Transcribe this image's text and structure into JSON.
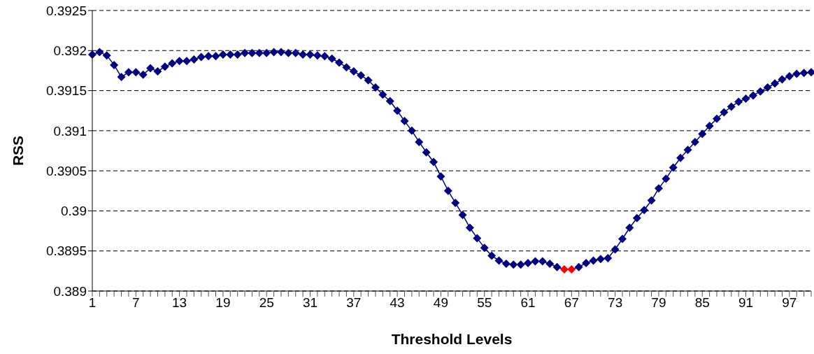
{
  "chart_data": {
    "type": "line",
    "xlabel": "Threshold Levels",
    "ylabel": "RSS",
    "categories": [
      "1",
      null,
      null,
      null,
      null,
      null,
      "7",
      null,
      null,
      null,
      null,
      null,
      "13",
      null,
      null,
      null,
      null,
      null,
      "19",
      null,
      null,
      null,
      null,
      null,
      "25",
      null,
      null,
      null,
      null,
      null,
      "31",
      null,
      null,
      null,
      null,
      null,
      "37",
      null,
      null,
      null,
      null,
      null,
      "43",
      null,
      null,
      null,
      null,
      null,
      "49",
      null,
      null,
      null,
      null,
      null,
      "55",
      null,
      null,
      null,
      null,
      null,
      "61",
      null,
      null,
      null,
      null,
      null,
      "67",
      null,
      null,
      null,
      null,
      null,
      "73",
      null,
      null,
      null,
      null,
      null,
      "79",
      null,
      null,
      null,
      null,
      null,
      "85",
      null,
      null,
      null,
      null,
      null,
      "91",
      null,
      null,
      null,
      null,
      null,
      "97",
      null,
      null,
      null
    ],
    "series": [
      {
        "color": "#000080",
        "values": [
          0.39195,
          0.39198,
          0.39194,
          0.39182,
          0.39167,
          0.39173,
          0.39173,
          0.3917,
          0.39178,
          0.39174,
          0.3918,
          0.39184,
          0.39187,
          0.39187,
          0.39189,
          0.39192,
          0.39193,
          0.39193,
          0.39195,
          0.39195,
          0.39195,
          0.39197,
          0.39197,
          0.39197,
          0.39197,
          0.39198,
          0.39198,
          0.39197,
          0.39197,
          0.39195,
          0.39195,
          0.39194,
          0.39193,
          0.3919,
          0.39185,
          0.39179,
          0.39174,
          0.39169,
          0.39163,
          0.39154,
          0.39145,
          0.39137,
          0.39125,
          0.39112,
          0.391,
          0.39086,
          0.39073,
          0.39061,
          0.39043,
          0.39025,
          0.3901,
          0.38995,
          0.38979,
          0.38966,
          0.38954,
          0.38944,
          0.38938,
          0.38934,
          0.38933,
          0.38933,
          0.38935,
          0.38937,
          0.38937,
          0.38934,
          0.3893,
          0.38927,
          0.38927,
          0.3893,
          0.38935,
          0.38938,
          0.3894,
          0.38941,
          0.38952,
          0.38965,
          0.38979,
          0.38991,
          0.39001,
          0.39013,
          0.39028,
          0.3904,
          0.39054,
          0.39066,
          0.39076,
          0.39086,
          0.39096,
          0.39106,
          0.39115,
          0.39123,
          0.3913,
          0.39136,
          0.3914,
          0.39144,
          0.39149,
          0.39154,
          0.39159,
          0.39164,
          0.39168,
          0.39171,
          0.39172,
          0.39173
        ],
        "colors": [
          "#000080",
          "#000080",
          "#000080",
          "#000080",
          "#000080",
          "#000080",
          "#000080",
          "#000080",
          "#000080",
          "#000080",
          "#000080",
          "#000080",
          "#000080",
          "#000080",
          "#000080",
          "#000080",
          "#000080",
          "#000080",
          "#000080",
          "#000080",
          "#000080",
          "#000080",
          "#000080",
          "#000080",
          "#000080",
          "#000080",
          "#000080",
          "#000080",
          "#000080",
          "#000080",
          "#000080",
          "#000080",
          "#000080",
          "#000080",
          "#000080",
          "#000080",
          "#000080",
          "#000080",
          "#000080",
          "#000080",
          "#000080",
          "#000080",
          "#000080",
          "#000080",
          "#000080",
          "#000080",
          "#000080",
          "#000080",
          "#000080",
          "#000080",
          "#000080",
          "#000080",
          "#000080",
          "#000080",
          "#000080",
          "#000080",
          "#000080",
          "#000080",
          "#000080",
          "#000080",
          "#000080",
          "#000080",
          "#000080",
          "#000080",
          "#000080",
          "#ff0000",
          "#ff0000",
          "#000080",
          "#000080",
          "#000080",
          "#000080",
          "#000080",
          "#000080",
          "#000080",
          "#000080",
          "#000080",
          "#000080",
          "#000080",
          "#000080",
          "#000080",
          "#000080",
          "#000080",
          "#000080",
          "#000080",
          "#000080",
          "#000080",
          "#000080",
          "#000080",
          "#000080",
          "#000080",
          "#000080",
          "#000080",
          "#000080",
          "#000080",
          "#000080",
          "#000080",
          "#000080",
          "#000080",
          "#000080",
          "#000080"
        ]
      }
    ],
    "ylim": [
      0.389,
      0.3925
    ],
    "yticks": [
      0.389,
      0.3895,
      0.39,
      0.3905,
      0.391,
      0.3915,
      0.392,
      0.3925
    ],
    "grid": "y",
    "marker": "diamond",
    "line_style": "solid"
  }
}
